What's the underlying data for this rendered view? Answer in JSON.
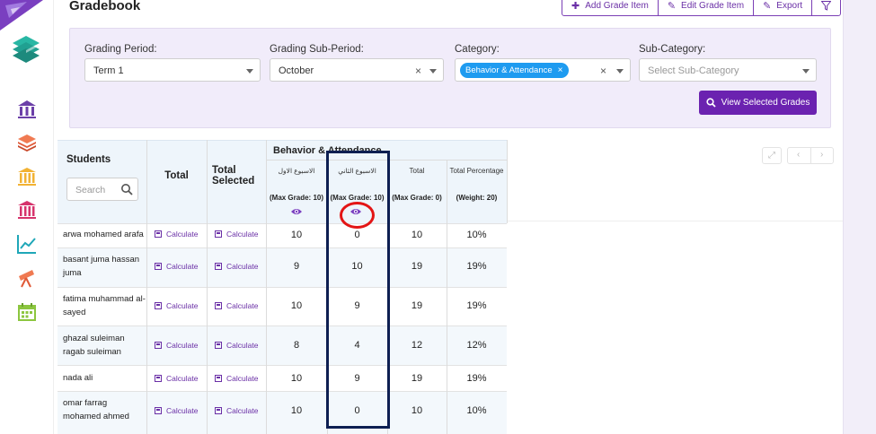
{
  "header": {
    "title": "Gradebook",
    "actions": [
      {
        "icon": "plus-icon",
        "label": "Add Grade Item"
      },
      {
        "icon": "pencil-icon",
        "label": "Edit Grade Item"
      },
      {
        "icon": "pencil-icon",
        "label": "Export"
      },
      {
        "icon": "filter-icon",
        "label": ""
      }
    ]
  },
  "filters": {
    "grading_period": {
      "label": "Grading Period:",
      "value": "Term 1"
    },
    "grading_sub_period": {
      "label": "Grading Sub-Period:",
      "value": "October",
      "clear": "×"
    },
    "category": {
      "label": "Category:",
      "chip": "Behavior & Attendance",
      "chip_remove": "×",
      "clear": "×"
    },
    "sub_category": {
      "label": "Sub-Category:",
      "placeholder": "Select Sub-Category"
    },
    "view_button": "View Selected Grades"
  },
  "table": {
    "students_label": "Students",
    "search_placeholder": "Search",
    "total_label": "Total",
    "total_selected_label": "Total Selected",
    "group_label": "Behavior & Attendance",
    "columns": [
      {
        "title": "الاسبوع الاول",
        "max": "(Max Grade: 10)"
      },
      {
        "title": "الاسبوع الثاني",
        "max": "(Max Grade: 10)"
      },
      {
        "title": "Total",
        "max": "(Max Grade: 0)"
      },
      {
        "title": "Total Percentage",
        "max": "(Weight: 20)"
      }
    ],
    "calculate_label": "Calculate",
    "rows": [
      {
        "name": "arwa mohamed arafa",
        "w1": "10",
        "w2": "0",
        "total": "10",
        "pct": "10%"
      },
      {
        "name": "basant juma hassan juma",
        "w1": "9",
        "w2": "10",
        "total": "19",
        "pct": "19%"
      },
      {
        "name": "fatima muhammad al-sayed",
        "w1": "10",
        "w2": "9",
        "total": "19",
        "pct": "19%"
      },
      {
        "name": "ghazal suleiman ragab suleiman",
        "w1": "8",
        "w2": "4",
        "total": "12",
        "pct": "12%"
      },
      {
        "name": "nada ali",
        "w1": "10",
        "w2": "9",
        "total": "19",
        "pct": "19%"
      },
      {
        "name": "omar farrag mohamed ahmed",
        "w1": "10",
        "w2": "0",
        "total": "10",
        "pct": "10%"
      }
    ]
  },
  "controls": {
    "expand": "⤢",
    "prev": "‹",
    "next": "›"
  },
  "colors": {
    "accent": "#6b22b0",
    "chip": "#1e9bf0",
    "annotation_rect": "#0e1f52",
    "annotation_circle": "#e31515"
  }
}
